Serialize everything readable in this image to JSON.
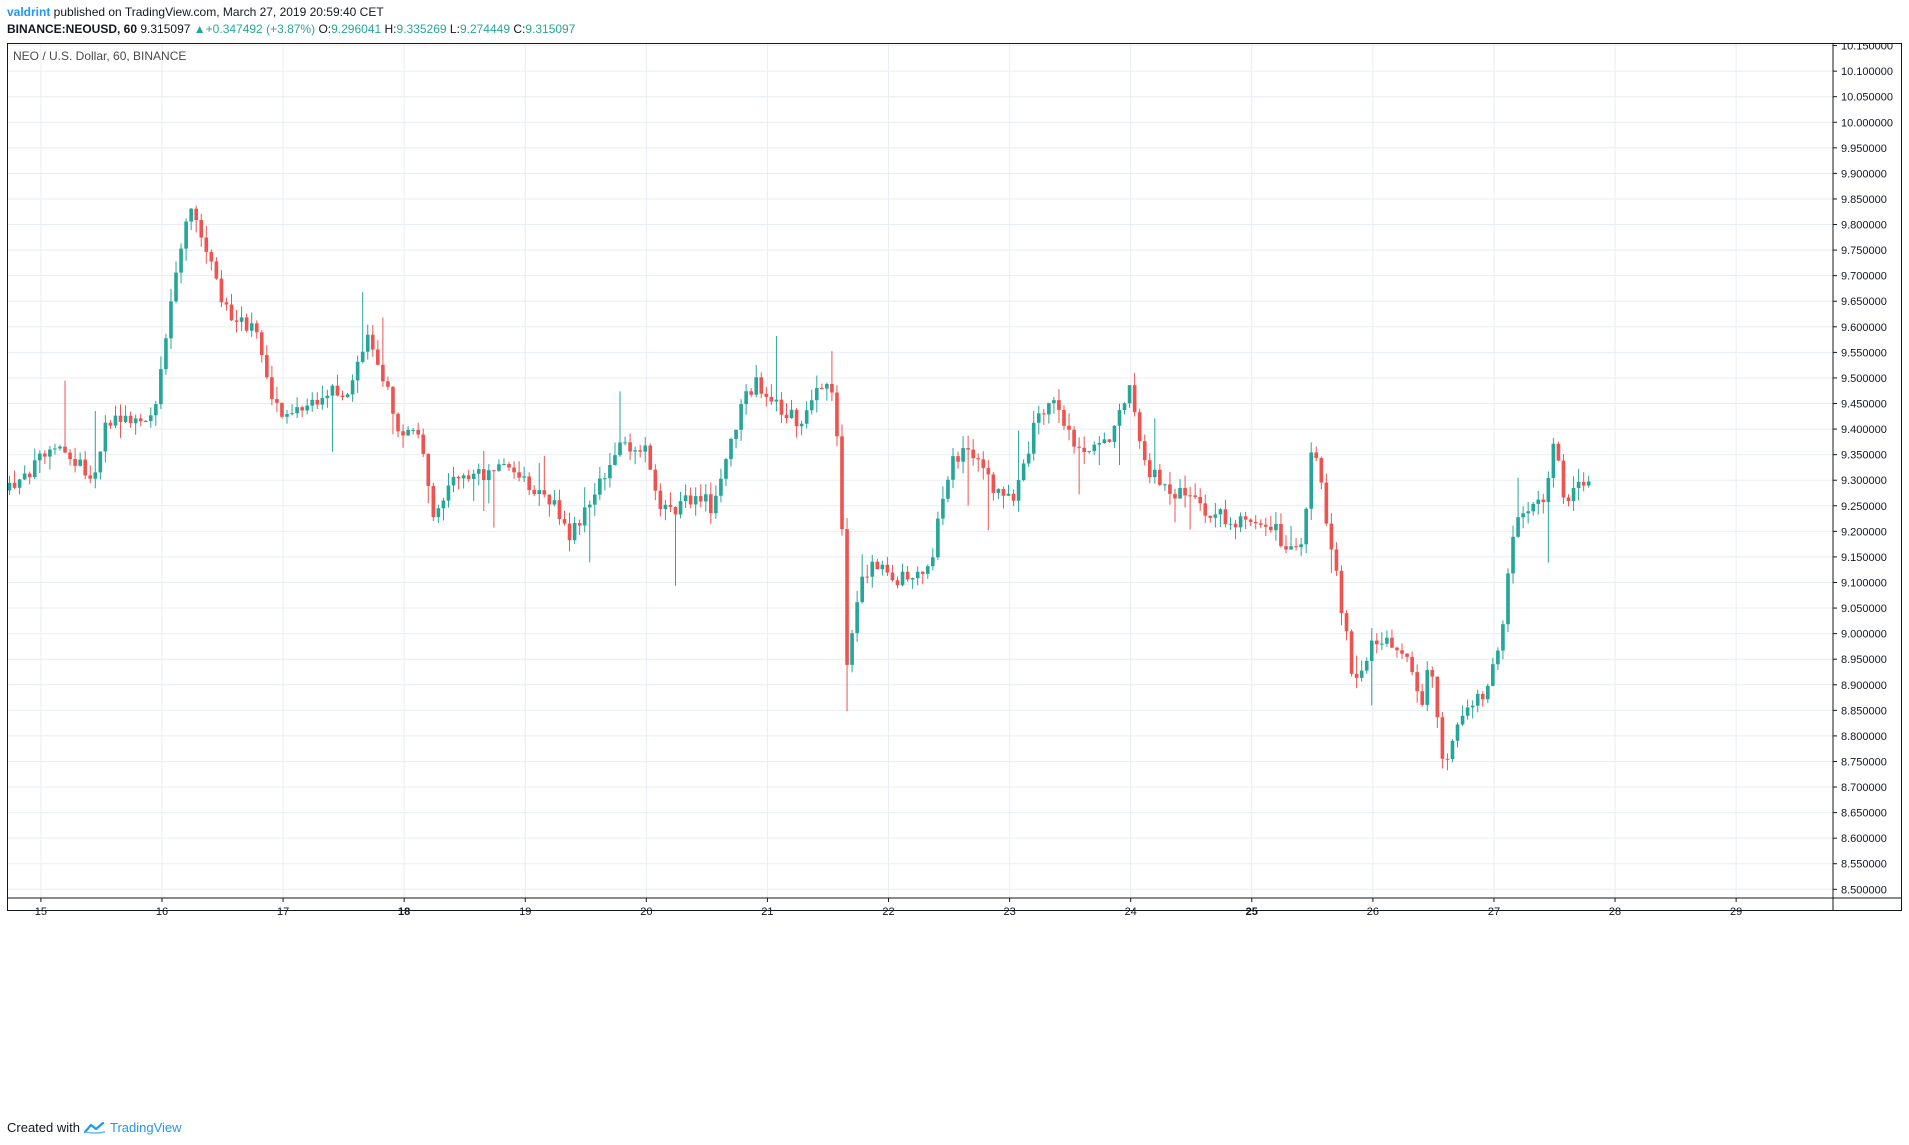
{
  "header": {
    "author": "valdrint",
    "published_text": " published on TradingView.com, March 27, 2019 20:59:40 CET"
  },
  "quote": {
    "symbol": "BINANCE:NEOUSD, 60",
    "last": "9.315097",
    "arrow": "▲",
    "change": "+0.347492 (+3.87%)",
    "o_label": "O:",
    "o": "9.296041",
    "h_label": "H:",
    "h": "9.335269",
    "l_label": "L:",
    "l": "9.274449",
    "c_label": "C:",
    "c": "9.315097"
  },
  "footer": {
    "created_with": "Created with",
    "brand": "TradingView"
  },
  "colors": {
    "up": "#26a69a",
    "down": "#ef5350",
    "grid": "#e8eef4",
    "axis": "#131722",
    "brand": "#2196f3"
  },
  "chart_data": {
    "type": "candlestick",
    "title": "NEO / U.S. Dollar, 60, BINANCE",
    "x_tick_labels": [
      {
        "day": 15,
        "label": "15",
        "bold": false
      },
      {
        "day": 16,
        "label": "16",
        "bold": false
      },
      {
        "day": 17,
        "label": "17",
        "bold": false
      },
      {
        "day": 18,
        "label": "18",
        "bold": true
      },
      {
        "day": 19,
        "label": "19",
        "bold": false
      },
      {
        "day": 20,
        "label": "20",
        "bold": false
      },
      {
        "day": 21,
        "label": "21",
        "bold": false
      },
      {
        "day": 22,
        "label": "22",
        "bold": false
      },
      {
        "day": 23,
        "label": "23",
        "bold": false
      },
      {
        "day": 24,
        "label": "24",
        "bold": false
      },
      {
        "day": 25,
        "label": "25",
        "bold": true
      },
      {
        "day": 26,
        "label": "26",
        "bold": false
      },
      {
        "day": 27,
        "label": "27",
        "bold": false
      },
      {
        "day": 28,
        "label": "28",
        "bold": false
      },
      {
        "day": 29,
        "label": "29",
        "bold": false
      }
    ],
    "y_tick_labels": [
      "8.500000",
      "8.550000",
      "8.600000",
      "8.650000",
      "8.700000",
      "8.750000",
      "8.800000",
      "8.850000",
      "8.900000",
      "8.950000",
      "9.000000",
      "9.050000",
      "9.100000",
      "9.150000",
      "9.200000",
      "9.250000",
      "9.300000",
      "9.350000",
      "9.400000",
      "9.450000",
      "9.500000",
      "9.550000",
      "9.600000",
      "9.650000",
      "9.700000",
      "9.750000",
      "9.800000",
      "9.850000",
      "9.900000",
      "9.950000",
      "10.000000",
      "10.050000",
      "10.100000",
      "10.150000"
    ],
    "xlim": [
      14.72,
      29.8
    ],
    "ylim": [
      8.483,
      10.155
    ],
    "key_points": [
      [
        14.72,
        9.28
      ],
      [
        15.0,
        9.34
      ],
      [
        15.2,
        9.36
      ],
      [
        15.42,
        9.3
      ],
      [
        15.55,
        9.42
      ],
      [
        15.75,
        9.41
      ],
      [
        15.95,
        9.44
      ],
      [
        16.08,
        9.65
      ],
      [
        16.22,
        9.84
      ],
      [
        16.35,
        9.76
      ],
      [
        16.55,
        9.62
      ],
      [
        16.78,
        9.6
      ],
      [
        16.92,
        9.44
      ],
      [
        17.12,
        9.43
      ],
      [
        17.38,
        9.48
      ],
      [
        17.55,
        9.46
      ],
      [
        17.7,
        9.59
      ],
      [
        17.85,
        9.49
      ],
      [
        17.98,
        9.38
      ],
      [
        18.12,
        9.4
      ],
      [
        18.25,
        9.23
      ],
      [
        18.38,
        9.3
      ],
      [
        18.6,
        9.31
      ],
      [
        18.82,
        9.32
      ],
      [
        19.0,
        9.3
      ],
      [
        19.22,
        9.26
      ],
      [
        19.38,
        9.19
      ],
      [
        19.55,
        9.27
      ],
      [
        19.75,
        9.36
      ],
      [
        20.0,
        9.37
      ],
      [
        20.08,
        9.26
      ],
      [
        20.25,
        9.24
      ],
      [
        20.42,
        9.28
      ],
      [
        20.55,
        9.24
      ],
      [
        20.65,
        9.33
      ],
      [
        20.8,
        9.46
      ],
      [
        20.92,
        9.49
      ],
      [
        21.12,
        9.44
      ],
      [
        21.3,
        9.41
      ],
      [
        21.42,
        9.48
      ],
      [
        21.55,
        9.47
      ],
      [
        21.6,
        9.31
      ],
      [
        21.65,
        8.93
      ],
      [
        21.75,
        9.09
      ],
      [
        21.9,
        9.14
      ],
      [
        22.05,
        9.1
      ],
      [
        22.2,
        9.12
      ],
      [
        22.35,
        9.14
      ],
      [
        22.45,
        9.27
      ],
      [
        22.55,
        9.35
      ],
      [
        22.7,
        9.35
      ],
      [
        22.85,
        9.29
      ],
      [
        23.05,
        9.27
      ],
      [
        23.2,
        9.4
      ],
      [
        23.35,
        9.46
      ],
      [
        23.5,
        9.38
      ],
      [
        23.65,
        9.36
      ],
      [
        23.82,
        9.37
      ],
      [
        24.0,
        9.48
      ],
      [
        24.1,
        9.34
      ],
      [
        24.25,
        9.29
      ],
      [
        24.45,
        9.27
      ],
      [
        24.65,
        9.24
      ],
      [
        24.82,
        9.22
      ],
      [
        25.0,
        9.21
      ],
      [
        25.15,
        9.22
      ],
      [
        25.28,
        9.17
      ],
      [
        25.42,
        9.18
      ],
      [
        25.5,
        9.39
      ],
      [
        25.62,
        9.22
      ],
      [
        25.75,
        9.04
      ],
      [
        25.85,
        8.89
      ],
      [
        26.0,
        8.98
      ],
      [
        26.15,
        8.98
      ],
      [
        26.3,
        8.96
      ],
      [
        26.4,
        8.86
      ],
      [
        26.48,
        8.95
      ],
      [
        26.58,
        8.75
      ],
      [
        26.72,
        8.82
      ],
      [
        26.85,
        8.88
      ],
      [
        26.95,
        8.89
      ],
      [
        27.05,
        8.98
      ],
      [
        27.15,
        9.2
      ],
      [
        27.3,
        9.26
      ],
      [
        27.42,
        9.25
      ],
      [
        27.5,
        9.39
      ],
      [
        27.58,
        9.26
      ],
      [
        27.68,
        9.28
      ],
      [
        27.8,
        9.315
      ]
    ]
  }
}
